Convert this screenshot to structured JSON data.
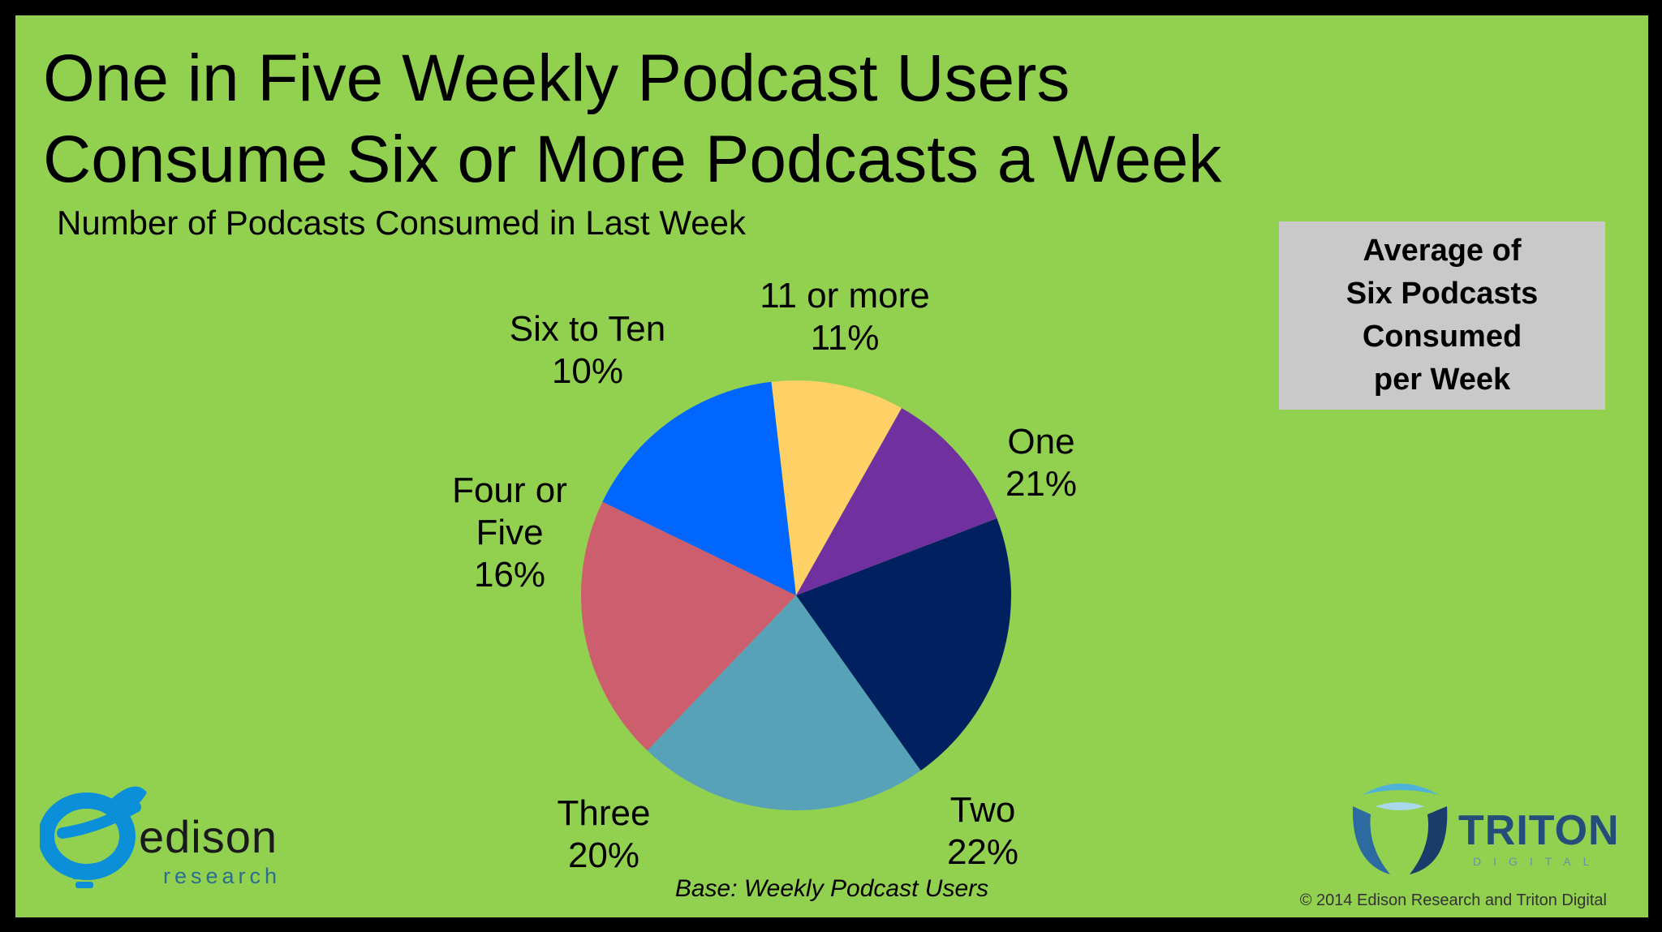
{
  "title_line1": "One in Five Weekly Podcast Users",
  "title_line2": "Consume Six or More Podcasts a Week",
  "callout": "Average of\nSix Podcasts\nConsumed\nper Week",
  "base_note": "Base: Weekly Podcast Users",
  "copyright": "© 2014 Edison Research and Triton Digital",
  "logos": {
    "edison": {
      "word": "edison",
      "sub": "research"
    },
    "triton": {
      "word": "TRITON",
      "sub": "DIGITAL"
    }
  },
  "chart_data": {
    "type": "pie",
    "title": "Number of Podcasts Consumed in Last Week",
    "slices": [
      {
        "label_lines": [
          "One"
        ],
        "value": 21,
        "display": "21%",
        "color": "#002060"
      },
      {
        "label_lines": [
          "Two"
        ],
        "value": 22,
        "display": "22%",
        "color": "#57a2b8"
      },
      {
        "label_lines": [
          "Three"
        ],
        "value": 20,
        "display": "20%",
        "color": "#cd5e6e"
      },
      {
        "label_lines": [
          "Four or",
          "Five"
        ],
        "value": 16,
        "display": "16%",
        "color": "#0066ff"
      },
      {
        "label_lines": [
          "Six to Ten"
        ],
        "value": 10,
        "display": "10%",
        "color": "#ffd166"
      },
      {
        "label_lines": [
          "11 or more"
        ],
        "value": 11,
        "display": "11%",
        "color": "#7030a0"
      }
    ]
  }
}
